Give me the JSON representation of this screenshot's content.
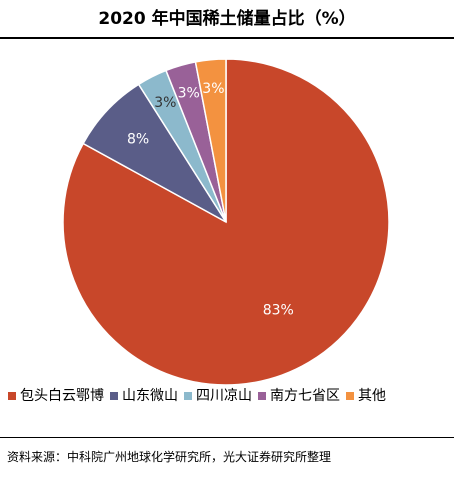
{
  "chart_data": {
    "type": "pie",
    "title": "2020 年中国稀土储量占比（%）",
    "slices": [
      {
        "name": "包头白云鄂博",
        "value": 83,
        "label": "83%",
        "color": "#c8472a"
      },
      {
        "name": "山东微山",
        "value": 8,
        "label": "8%",
        "color": "#5a5d88"
      },
      {
        "name": "四川凉山",
        "value": 3,
        "label": "3%",
        "color": "#8cb9cc"
      },
      {
        "name": "南方七省区",
        "value": 3,
        "label": "3%",
        "color": "#996198"
      },
      {
        "name": "其他",
        "value": 3,
        "label": "3%",
        "color": "#f39240"
      }
    ],
    "legend_position": "bottom",
    "start": "12 o'clock",
    "direction": "clockwise"
  },
  "source": "资料来源：中科院广州地球化学研究所，光大证券研究所整理"
}
